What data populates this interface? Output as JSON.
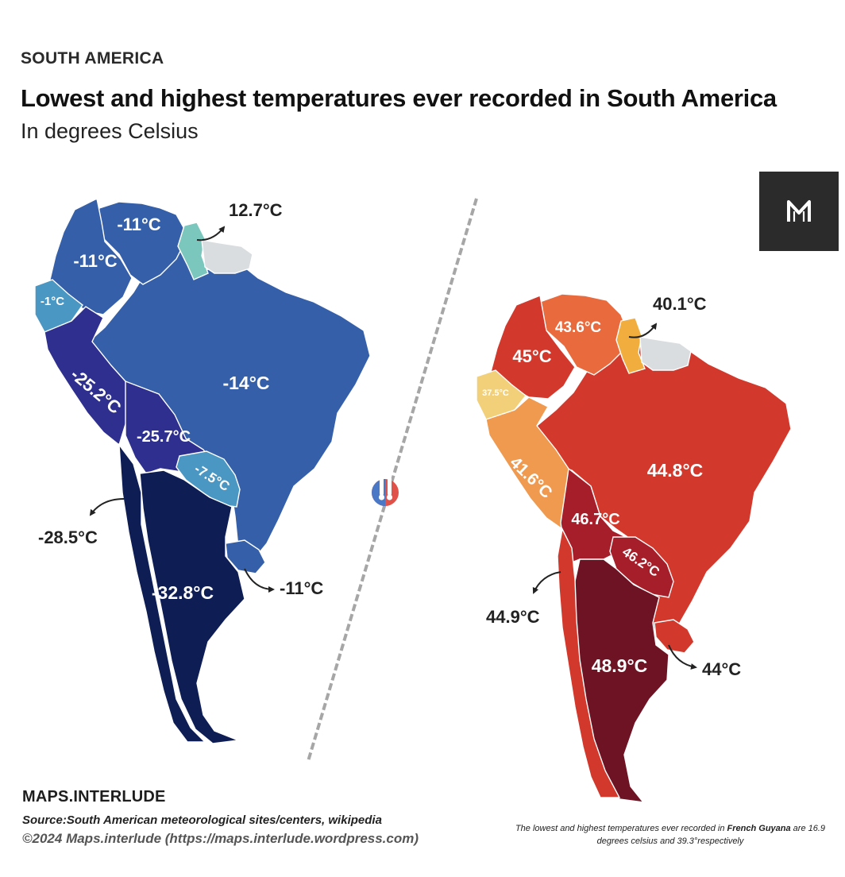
{
  "header": {
    "eyebrow": "SOUTH AMERICA",
    "title": "Lowest and highest temperatures ever recorded in South America",
    "subtitle": "In degrees Celsius"
  },
  "logo": {
    "icon": "maps-interlude-m-logo",
    "background": "#2b2b2b"
  },
  "lowest_map": {
    "colors": {
      "dark": "#0e1e55",
      "indigo": "#2e2f8e",
      "blue": "#3560a9",
      "cyan": "#4a97c4",
      "teal": "#7cc7bd",
      "grey": "#d9dde0"
    },
    "labels": {
      "venezuela": "-11°C",
      "colombia": "-11°C",
      "ecuador": "-1°C",
      "peru": "-25.2°C",
      "brazil": "-14°C",
      "bolivia": "-25.7°C",
      "paraguay": "-7.5°C",
      "argentina": "-32.8°C",
      "chile": "-28.5°C",
      "uruguay": "-11°C",
      "guyana_suriname": "12.7°C"
    }
  },
  "highest_map": {
    "colors": {
      "darkred": "#6e1324",
      "crimson": "#a51e2a",
      "red": "#d3382c",
      "orange": "#e96a3d",
      "light_orange": "#ef9a4f",
      "yellow": "#f2d07a",
      "grey": "#d9dde0"
    },
    "labels": {
      "venezuela": "43.6°C",
      "colombia": "45°C",
      "ecuador": "37.5°C",
      "peru": "41.6°C",
      "brazil": "44.8°C",
      "bolivia": "46.7°C",
      "paraguay": "46.2°C",
      "argentina": "48.9°C",
      "chile": "44.9°C",
      "uruguay": "44°C",
      "guyana_suriname": "40.1°C"
    }
  },
  "divider_icon": "thermometer-snow-sun-icon",
  "footer": {
    "brand": "MAPS.INTERLUDE",
    "source": "Source:South American meteorological sites/centers, wikipedia",
    "copyright": "©2024 Maps.interlude (https://maps.interlude.wordpress.com)",
    "footnote_prefix": "The lowest and highest temperatures ever recorded in ",
    "footnote_bold": "French Guyana",
    "footnote_suffix": " are 16.9 degrees celsius and 39.3°respectively"
  }
}
